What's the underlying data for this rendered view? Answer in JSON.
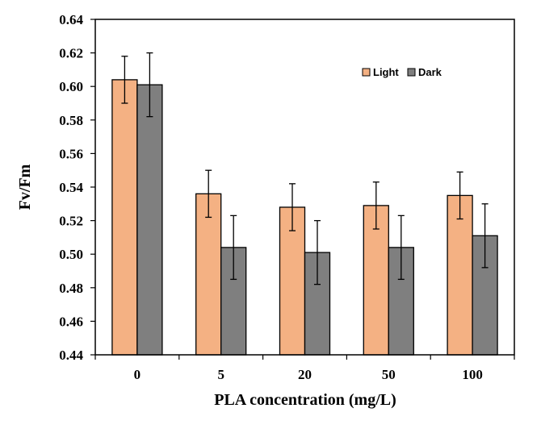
{
  "chart_data": {
    "type": "bar",
    "title": "",
    "xlabel": "PLA concentration (mg/L)",
    "ylabel": "Fv/Fm",
    "categories": [
      "0",
      "5",
      "20",
      "50",
      "100"
    ],
    "ylim": [
      0.44,
      0.64
    ],
    "yticks": [
      0.44,
      0.46,
      0.48,
      0.5,
      0.52,
      0.54,
      0.56,
      0.58,
      0.6,
      0.62,
      0.64
    ],
    "ytick_labels": [
      "0.44",
      "0.46",
      "0.48",
      "0.50",
      "0.52",
      "0.54",
      "0.56",
      "0.58",
      "0.60",
      "0.62",
      "0.64"
    ],
    "grid": false,
    "legend_position": "top-right",
    "series": [
      {
        "name": "Light",
        "color": "#F4B183",
        "values": [
          0.604,
          0.536,
          0.528,
          0.529,
          0.535
        ],
        "errors": [
          0.014,
          0.014,
          0.014,
          0.014,
          0.014
        ]
      },
      {
        "name": "Dark",
        "color": "#7F7F7F",
        "values": [
          0.601,
          0.504,
          0.501,
          0.504,
          0.511
        ],
        "errors": [
          0.019,
          0.019,
          0.019,
          0.019,
          0.019
        ]
      }
    ]
  }
}
